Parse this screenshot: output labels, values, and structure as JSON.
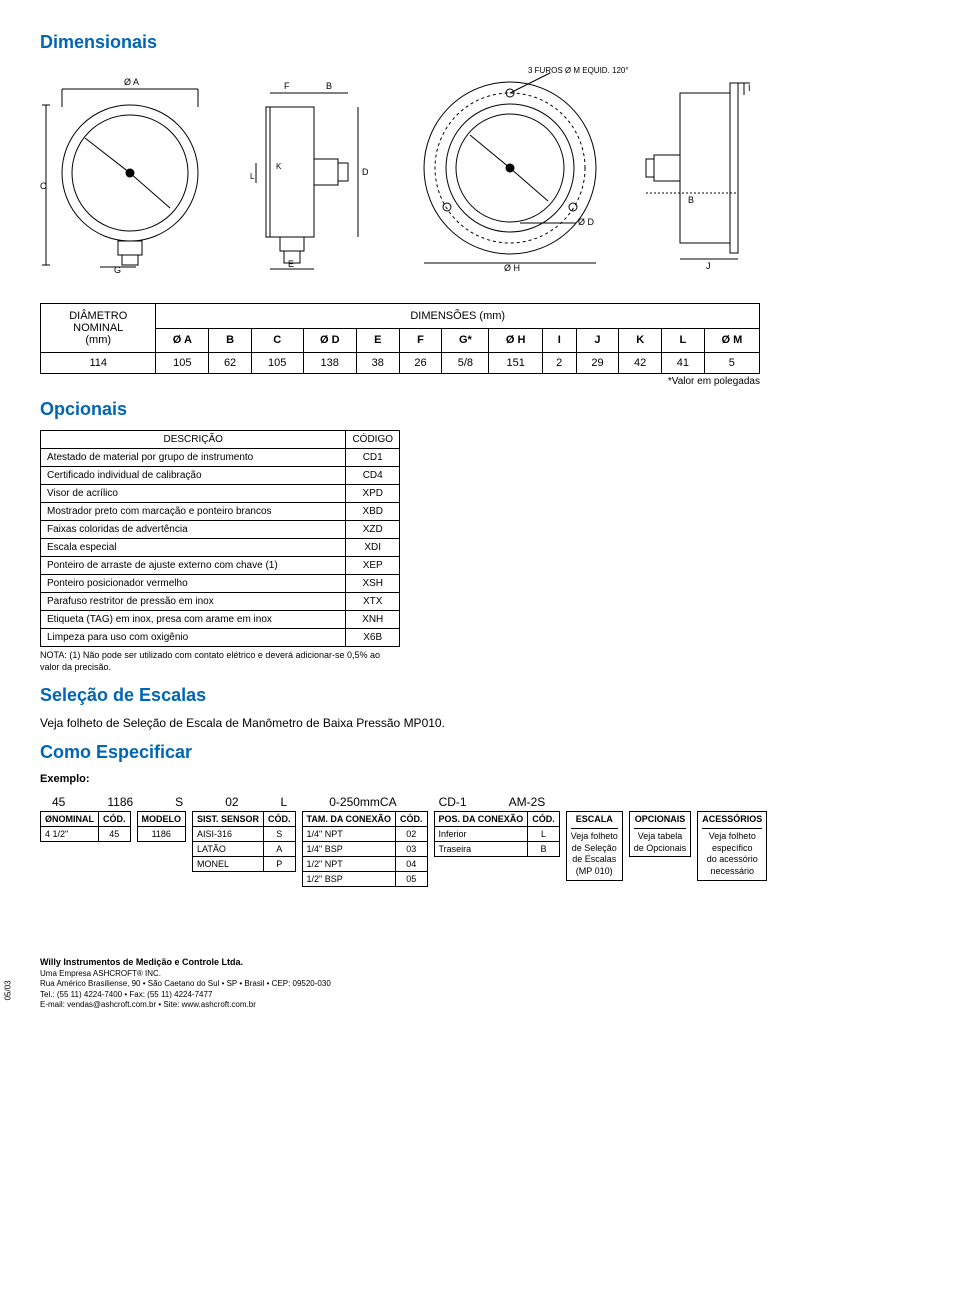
{
  "colors": {
    "accent": "#0066b3",
    "text": "#000000",
    "line": "#000000",
    "bg": "#ffffff"
  },
  "sections": {
    "dimensionais": "Dimensionais",
    "opcionais": "Opcionais",
    "selecao": "Seleção de Escalas",
    "selecao_sub": "Veja folheto de Seleção de Escala de Manômetro de Baixa Pressão MP010.",
    "como": "Como Especificar",
    "exemplo": "Exemplo:"
  },
  "diagram_labels": {
    "phi_a": "Ø A",
    "c": "C",
    "g": "G",
    "f": "F",
    "b": "B",
    "k": "K",
    "l": "L",
    "d": "D",
    "e": "E",
    "furos": "3 FUROS Ø M EQUID. 120°",
    "phi_d": "Ø D",
    "phi_h": "Ø H",
    "i": "I",
    "j": "J",
    "b2": "B"
  },
  "dim_table": {
    "row_header": "DIÂMETRO\nNOMINAL\n(mm)",
    "span_header": "DIMENSÕES (mm)",
    "columns": [
      "Ø A",
      "B",
      "C",
      "Ø D",
      "E",
      "F",
      "G*",
      "Ø H",
      "I",
      "J",
      "K",
      "L",
      "Ø M"
    ],
    "row_value": "114",
    "values": [
      "105",
      "62",
      "105",
      "138",
      "38",
      "26",
      "5/8",
      "151",
      "2",
      "29",
      "42",
      "41",
      "5"
    ],
    "note": "*Valor em polegadas"
  },
  "opcionais_table": {
    "headers": [
      "DESCRIÇÃO",
      "CÓDIGO"
    ],
    "rows": [
      [
        "Atestado de material por grupo de instrumento",
        "CD1"
      ],
      [
        "Certificado individual de calibração",
        "CD4"
      ],
      [
        "Visor de acrílico",
        "XPD"
      ],
      [
        "Mostrador preto com marcação e ponteiro brancos",
        "XBD"
      ],
      [
        "Faixas coloridas de advertência",
        "XZD"
      ],
      [
        "Escala especial",
        "XDI"
      ],
      [
        "Ponteiro de arraste de ajuste externo com chave (1)",
        "XEP"
      ],
      [
        "Ponteiro posicionador vermelho",
        "XSH"
      ],
      [
        "Parafuso restritor de pressão em inox",
        "XTX"
      ],
      [
        "Etiqueta (TAG) em inox, presa com arame em inox",
        "XNH"
      ],
      [
        "Limpeza para uso com oxigênio",
        "X6B"
      ]
    ],
    "nota": "NOTA: (1) Não pode ser utilizado com contato elétrico e deverá adicionar-se 0,5% ao valor da precisão."
  },
  "spec_example": {
    "values": [
      "45",
      "1186",
      "S",
      "02",
      "L",
      "0-250mmCA",
      "CD-1",
      "AM-2S"
    ]
  },
  "spec_tables": {
    "nominal": {
      "headers": [
        "ØNOMINAL",
        "CÓD."
      ],
      "rows": [
        [
          "4 1/2\"",
          "45"
        ]
      ]
    },
    "modelo": {
      "headers": [
        "MODELO"
      ],
      "rows": [
        [
          "1186"
        ]
      ]
    },
    "sensor": {
      "headers": [
        "SIST. SENSOR",
        "CÓD."
      ],
      "rows": [
        [
          "AISI-316",
          "S"
        ],
        [
          "LATÃO",
          "A"
        ],
        [
          "MONEL",
          "P"
        ]
      ]
    },
    "tam": {
      "headers": [
        "TAM. DA CONEXÃO",
        "CÓD."
      ],
      "rows": [
        [
          "1/4\" NPT",
          "02"
        ],
        [
          "1/4\" BSP",
          "03"
        ],
        [
          "1/2\" NPT",
          "04"
        ],
        [
          "1/2\" BSP",
          "05"
        ]
      ]
    },
    "pos": {
      "headers": [
        "POS. DA CONEXÃO",
        "CÓD."
      ],
      "rows": [
        [
          "Inferior",
          "L"
        ],
        [
          "Traseira",
          "B"
        ]
      ]
    },
    "escala": {
      "title": "ESCALA",
      "text": "Veja folheto\nde Seleção\nde Escalas\n(MP 010)"
    },
    "opcionais": {
      "title": "OPCIONAIS",
      "text": "Veja tabela\nde Opcionais"
    },
    "acessorios": {
      "title": "ACESSÓRIOS",
      "text": "Veja folheto\nespecífico\ndo acessório\nnecessário"
    }
  },
  "footer": {
    "company": "Willy Instrumentos de Medição e Controle Ltda.",
    "sub": "Uma Empresa ASHCROFT® INC.",
    "addr": "Rua Américo Brasiliense, 90  •  São Caetano do Sul  •  SP  •  Brasil  •  CEP: 09520-030",
    "tel": "Tel.: (55 11) 4224-7400  •  Fax: (55 11) 4224-7477",
    "email": "E-mail: vendas@ashcroft.com.br  •  Site: www.ashcroft.com.br",
    "side": "05/03"
  }
}
